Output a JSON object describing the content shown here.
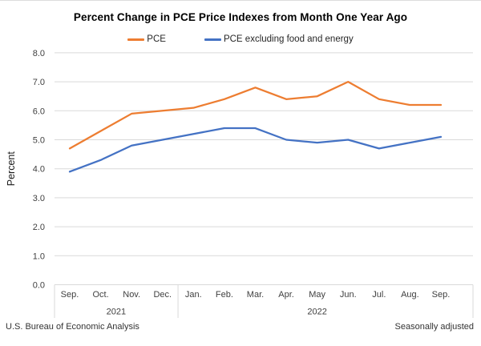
{
  "title": "Percent Change in PCE Price Indexes from Month One Year Ago",
  "footer": {
    "left": "U.S. Bureau of Economic Analysis",
    "right": "Seasonally adjusted"
  },
  "chart_data": {
    "type": "line",
    "title": "Percent Change in PCE Price Indexes from Month One Year Ago",
    "ylabel": "Percent",
    "ylim": [
      0.0,
      8.0
    ],
    "ytick_step": 1.0,
    "ytick_labels": [
      "0.0",
      "1.0",
      "2.0",
      "3.0",
      "4.0",
      "5.0",
      "6.0",
      "7.0",
      "8.0"
    ],
    "grid": true,
    "grid_color": "#d9d9d9",
    "legend_position": "top",
    "categories": [
      "Sep.",
      "Oct.",
      "Nov.",
      "Dec.",
      "Jan.",
      "Feb.",
      "Mar.",
      "Apr.",
      "May",
      "Jun.",
      "Jul.",
      "Aug.",
      "Sep."
    ],
    "year_groups": [
      {
        "label": "2021",
        "start": 0,
        "end": 3
      },
      {
        "label": "2022",
        "start": 4,
        "end": 12
      }
    ],
    "series": [
      {
        "name": "PCE",
        "color": "#ED7D31",
        "values": [
          4.7,
          5.3,
          5.9,
          6.0,
          6.1,
          6.4,
          6.8,
          6.4,
          6.5,
          7.0,
          6.4,
          6.2,
          6.2
        ]
      },
      {
        "name": "PCE excluding food and energy",
        "color": "#4472C4",
        "values": [
          3.9,
          4.3,
          4.8,
          5.0,
          5.2,
          5.4,
          5.4,
          5.0,
          4.9,
          5.0,
          4.7,
          4.9,
          5.1
        ]
      }
    ]
  }
}
